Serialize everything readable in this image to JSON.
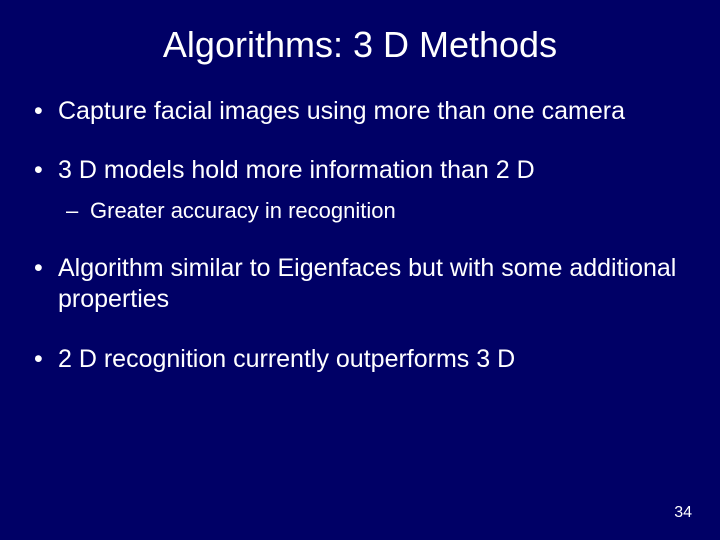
{
  "colors": {
    "background": "#000066",
    "text": "#ffffff"
  },
  "typography": {
    "font_family": "Arial",
    "title_fontsize": 36,
    "bullet_fontsize": 25,
    "subbullet_fontsize": 22,
    "pagenum_fontsize": 16
  },
  "slide": {
    "title": "Algorithms: 3 D Methods",
    "bullets": [
      {
        "text": "Capture facial images using more than one camera",
        "sub": []
      },
      {
        "text": "3 D models hold more information than 2 D",
        "sub": [
          "Greater accuracy in recognition"
        ]
      },
      {
        "text": "Algorithm similar to Eigenfaces but with some additional properties",
        "sub": []
      },
      {
        "text": "2 D recognition currently outperforms 3 D",
        "sub": []
      }
    ],
    "page_number": "34"
  }
}
